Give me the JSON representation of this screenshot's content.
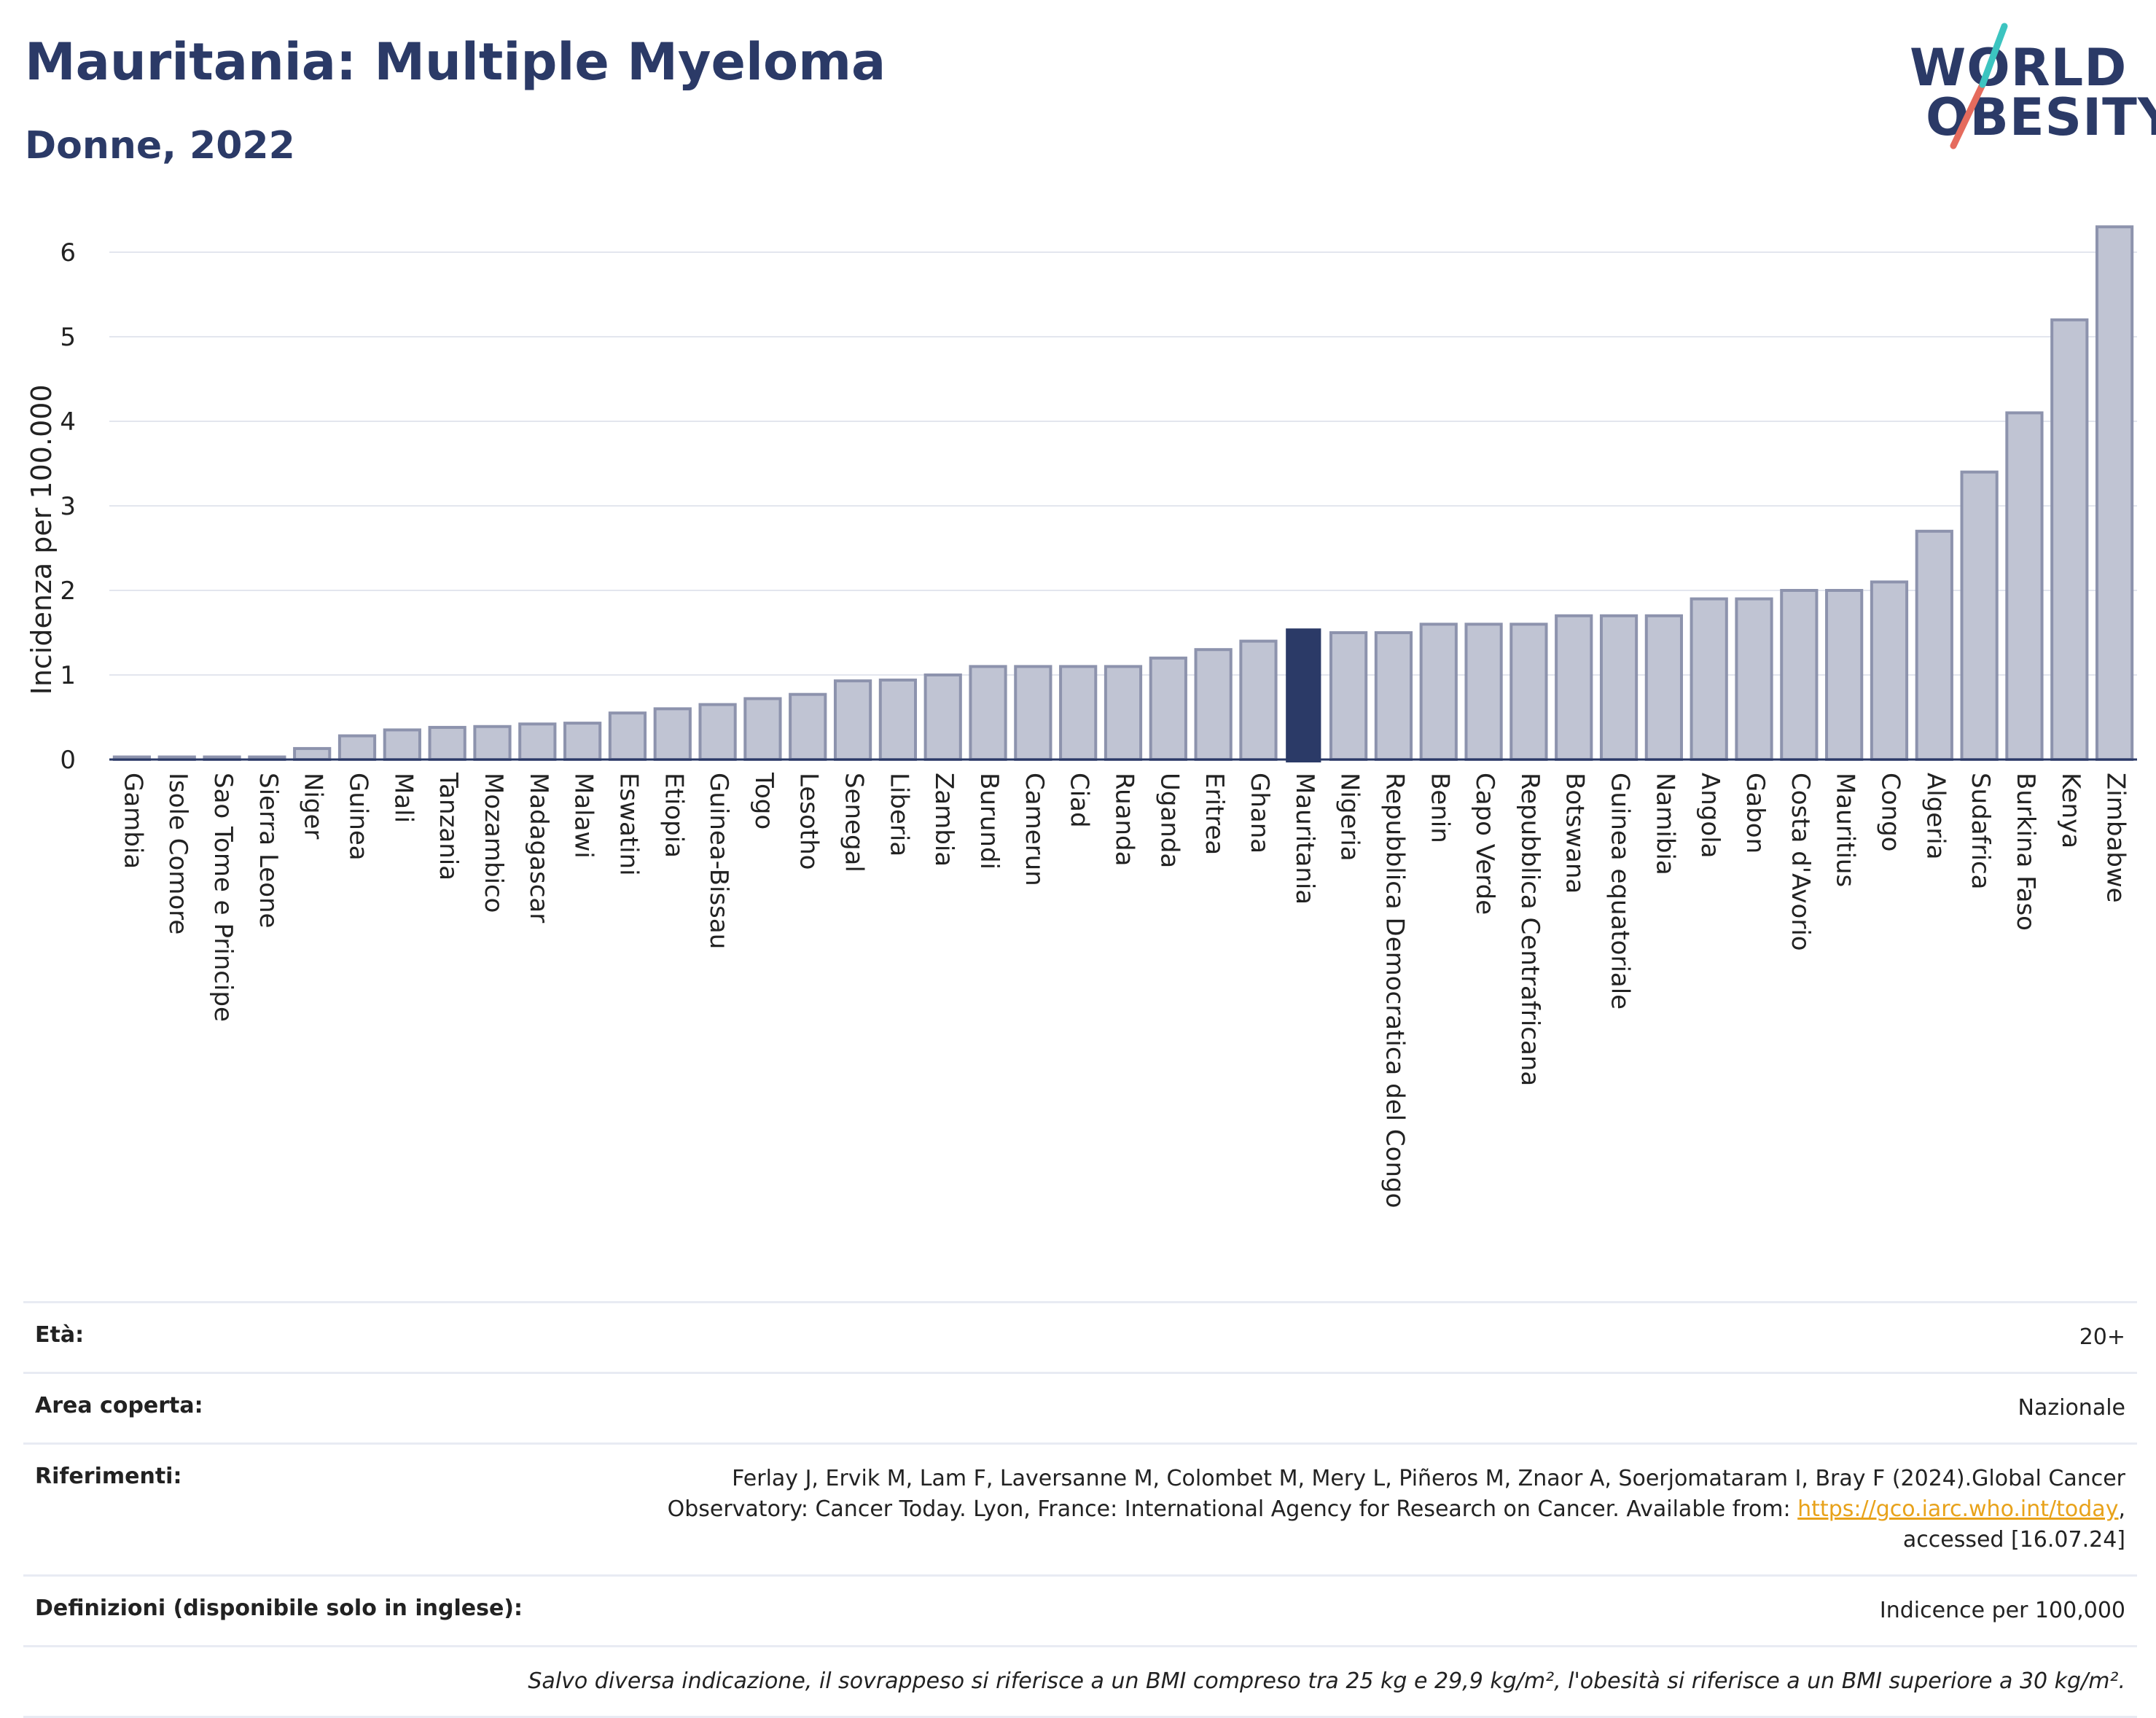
{
  "header": {
    "title": "Mauritania: Multiple Myeloma",
    "subtitle": "Donne, 2022"
  },
  "logo": {
    "line1": "WORLD",
    "line2": "OBESITY"
  },
  "colors": {
    "bar": "#c0c4d3",
    "bar_edge": "#8d93ad",
    "highlight": "#2b3a67",
    "grid": "#e3e6ee",
    "axis_text": "#222222"
  },
  "chart_data": {
    "type": "bar",
    "ylabel": "Incidenza per 100.000",
    "ylim": [
      0,
      6.5
    ],
    "yticks": [
      0,
      1,
      2,
      3,
      4,
      5,
      6
    ],
    "highlight": "Mauritania",
    "categories": [
      "Gambia",
      "Isole Comore",
      "Sao Tome e Principe",
      "Sierra Leone",
      "Niger",
      "Guinea",
      "Mali",
      "Tanzania",
      "Mozambico",
      "Madagascar",
      "Malawi",
      "Eswatini",
      "Etiopia",
      "Guinea-Bissau",
      "Togo",
      "Lesotho",
      "Senegal",
      "Liberia",
      "Zambia",
      "Burundi",
      "Camerun",
      "Ciad",
      "Ruanda",
      "Uganda",
      "Eritrea",
      "Ghana",
      "Mauritania",
      "Nigeria",
      "Repubblica Democratica del Congo",
      "Benin",
      "Capo Verde",
      "Repubblica Centrafricana",
      "Botswana",
      "Guinea equatoriale",
      "Namibia",
      "Angola",
      "Gabon",
      "Costa d'Avorio",
      "Mauritius",
      "Congo",
      "Algeria",
      "Sudafrica",
      "Burkina Faso",
      "Kenya",
      "Zimbabwe"
    ],
    "values": [
      0.03,
      0.03,
      0.03,
      0.03,
      0.13,
      0.28,
      0.35,
      0.38,
      0.39,
      0.42,
      0.43,
      0.55,
      0.6,
      0.65,
      0.72,
      0.77,
      0.93,
      0.94,
      1.0,
      1.1,
      1.1,
      1.1,
      1.1,
      1.2,
      1.3,
      1.4,
      1.55,
      1.5,
      1.5,
      1.6,
      1.6,
      1.6,
      1.7,
      1.7,
      1.7,
      1.9,
      1.9,
      2.0,
      2.0,
      2.1,
      2.7,
      3.4,
      4.1,
      5.2,
      6.3
    ]
  },
  "info": {
    "age_label": "Età:",
    "age_value": "20+",
    "area_label": "Area coperta:",
    "area_value": "Nazionale",
    "ref_label": "Riferimenti:",
    "ref_line1": "Ferlay J, Ervik M, Lam F, Laversanne M, Colombet M, Mery L, Piñeros M, Znaor A, Soerjomataram I, Bray F (2024).Global Cancer",
    "ref_line2": "Observatory: Cancer Today. Lyon, France: International Agency for Research on Cancer. Available from: ",
    "ref_link": "https://gco.iarc.who.int/today",
    "ref_line2_end": ",",
    "ref_line3": "accessed [16.07.24]",
    "def_label": "Definizioni (disponibile solo in inglese):",
    "def_value": "Indicence per 100,000",
    "note": "Salvo diversa indicazione, il sovrappeso si riferisce a un BMI compreso tra 25 kg e 29,9 kg/m², l'obesità si riferisce a un BMI superiore a 30 kg/m²."
  }
}
